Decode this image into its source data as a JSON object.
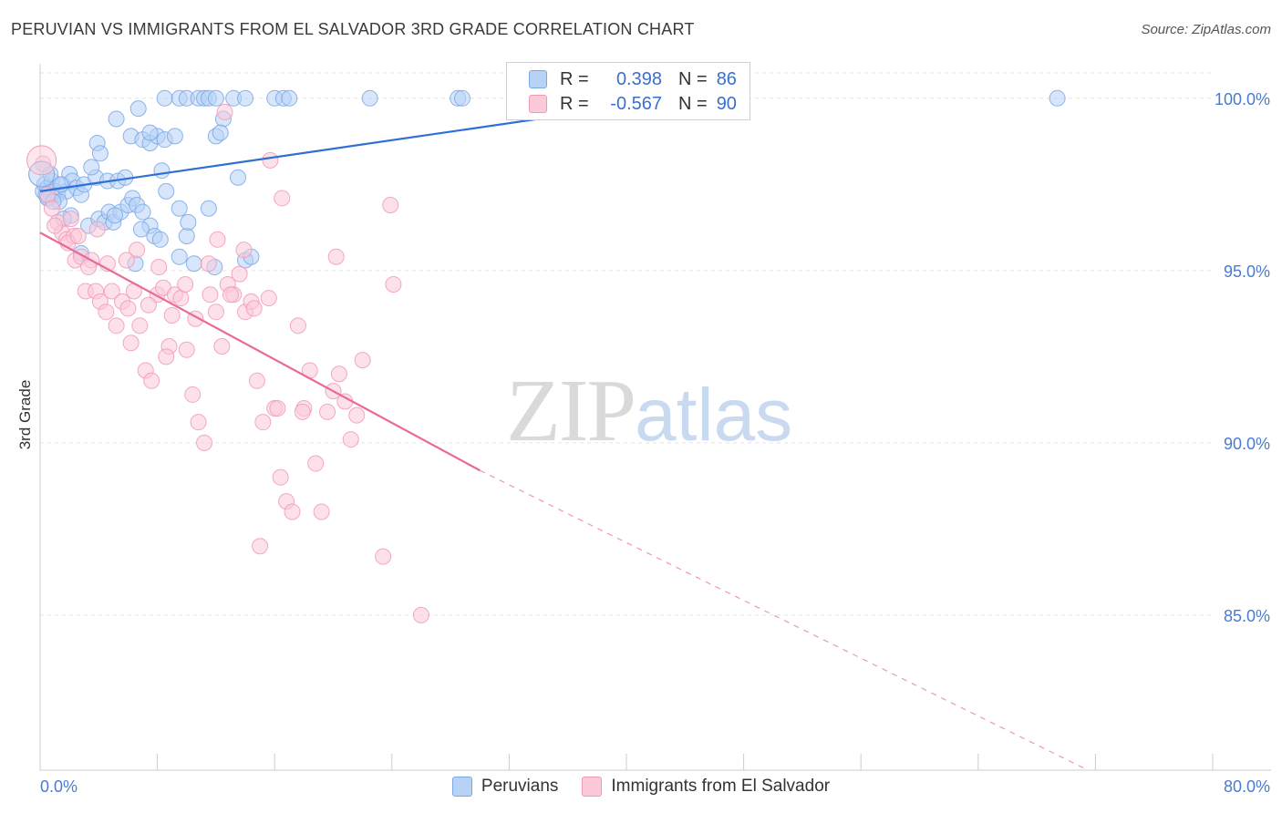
{
  "title": "PERUVIAN VS IMMIGRANTS FROM EL SALVADOR 3RD GRADE CORRELATION CHART",
  "source": "Source: ZipAtlas.com",
  "watermark": {
    "zip": "ZIP",
    "atlas": "atlas"
  },
  "legend": {
    "r_label": "R =",
    "n_label": "N =",
    "series": [
      {
        "name": "Peruvians",
        "r": "0.398",
        "n": "86",
        "color": "#7aa7e6"
      },
      {
        "name": "Immigrants from El Salvador",
        "r": "-0.567",
        "n": "90",
        "color": "#f19ab6"
      }
    ]
  },
  "chart_data": {
    "type": "scatter",
    "title": "PERUVIAN VS IMMIGRANTS FROM EL SALVADOR 3RD GRADE CORRELATION CHART",
    "xlabel": "",
    "ylabel": "3rd Grade",
    "xlim": [
      0,
      80
    ],
    "ylim": [
      80.5,
      101.0
    ],
    "x_tick_labels": {
      "left": "0.0%",
      "right": "80.0%"
    },
    "y_ticks": [
      {
        "value": 100,
        "label": "100.0%"
      },
      {
        "value": 95,
        "label": "95.0%"
      },
      {
        "value": 90,
        "label": "90.0%"
      },
      {
        "value": 85,
        "label": "85.0%"
      }
    ],
    "series": [
      {
        "name": "Peruvians",
        "color": "#7aa7e6",
        "fill": "#b7d2f5",
        "trend": {
          "x": [
            0,
            43.7
          ],
          "y": [
            97.3,
            100.0
          ],
          "dashed_to": null
        },
        "points": [
          [
            0.2,
            97.3
          ],
          [
            0.3,
            97.5
          ],
          [
            0.4,
            97.2
          ],
          [
            0.5,
            97.4
          ],
          [
            0.6,
            97.1
          ],
          [
            0.8,
            97.6
          ],
          [
            1.0,
            97.3
          ],
          [
            1.2,
            97.2
          ],
          [
            1.5,
            97.5
          ],
          [
            1.8,
            97.3
          ],
          [
            2.0,
            97.8
          ],
          [
            2.2,
            97.6
          ],
          [
            2.5,
            97.4
          ],
          [
            2.8,
            97.2
          ],
          [
            3.0,
            97.5
          ],
          [
            0.7,
            97.8
          ],
          [
            1.3,
            97.0
          ],
          [
            2.1,
            96.6
          ],
          [
            3.3,
            96.3
          ],
          [
            3.8,
            97.7
          ],
          [
            4.0,
            96.5
          ],
          [
            4.4,
            96.4
          ],
          [
            4.7,
            96.7
          ],
          [
            5.0,
            96.4
          ],
          [
            5.5,
            96.7
          ],
          [
            6.0,
            96.9
          ],
          [
            6.3,
            97.1
          ],
          [
            6.6,
            96.9
          ],
          [
            7.0,
            96.7
          ],
          [
            7.5,
            96.3
          ],
          [
            3.5,
            98.0
          ],
          [
            3.9,
            98.7
          ],
          [
            4.1,
            98.4
          ],
          [
            4.6,
            97.6
          ],
          [
            5.3,
            97.6
          ],
          [
            5.8,
            97.7
          ],
          [
            6.2,
            98.9
          ],
          [
            7.0,
            98.8
          ],
          [
            7.5,
            98.7
          ],
          [
            8.0,
            98.9
          ],
          [
            8.3,
            97.9
          ],
          [
            8.6,
            97.3
          ],
          [
            9.5,
            96.8
          ],
          [
            10.0,
            96.0
          ],
          [
            10.5,
            95.2
          ],
          [
            11.5,
            96.8
          ],
          [
            12.0,
            98.9
          ],
          [
            12.5,
            99.4
          ],
          [
            13.5,
            97.7
          ],
          [
            14.0,
            95.3
          ],
          [
            5.2,
            99.4
          ],
          [
            6.7,
            99.7
          ],
          [
            7.5,
            99.0
          ],
          [
            8.5,
            98.8
          ],
          [
            9.2,
            98.9
          ],
          [
            12.3,
            99.0
          ],
          [
            8.5,
            100.0
          ],
          [
            9.5,
            100.0
          ],
          [
            10.0,
            100.0
          ],
          [
            10.8,
            100.0
          ],
          [
            11.2,
            100.0
          ],
          [
            11.5,
            100.0
          ],
          [
            12.0,
            100.0
          ],
          [
            13.2,
            100.0
          ],
          [
            14.0,
            100.0
          ],
          [
            16.0,
            100.0
          ],
          [
            16.6,
            100.0
          ],
          [
            17.0,
            100.0
          ],
          [
            22.5,
            100.0
          ],
          [
            28.5,
            100.0
          ],
          [
            28.8,
            100.0
          ],
          [
            69.4,
            100.0
          ],
          [
            1.6,
            96.5
          ],
          [
            2.8,
            95.5
          ],
          [
            6.5,
            95.2
          ],
          [
            7.8,
            96.0
          ],
          [
            8.2,
            95.9
          ],
          [
            9.5,
            95.4
          ],
          [
            11.9,
            95.1
          ],
          [
            14.4,
            95.4
          ],
          [
            6.9,
            96.2
          ],
          [
            5.1,
            96.6
          ],
          [
            10.1,
            96.4
          ],
          [
            0.5,
            97.1
          ],
          [
            0.9,
            97.0
          ],
          [
            1.4,
            97.5
          ]
        ]
      },
      {
        "name": "Immigrants from El Salvador",
        "color": "#f19ab6",
        "fill": "#fbc9d8",
        "trend": {
          "x": [
            0,
            30.0
          ],
          "y": [
            96.1,
            89.2
          ],
          "dashed_to": [
            71.5,
            80.5
          ]
        },
        "points": [
          [
            0.2,
            98.1
          ],
          [
            0.5,
            97.2
          ],
          [
            0.8,
            96.8
          ],
          [
            1.2,
            96.4
          ],
          [
            1.5,
            96.1
          ],
          [
            1.8,
            95.9
          ],
          [
            2.1,
            96.5
          ],
          [
            2.4,
            95.3
          ],
          [
            2.8,
            95.4
          ],
          [
            3.1,
            94.4
          ],
          [
            3.5,
            95.3
          ],
          [
            3.8,
            94.4
          ],
          [
            4.1,
            94.1
          ],
          [
            4.5,
            93.8
          ],
          [
            4.9,
            94.4
          ],
          [
            5.2,
            93.4
          ],
          [
            5.6,
            94.1
          ],
          [
            6.0,
            93.9
          ],
          [
            6.4,
            94.4
          ],
          [
            6.8,
            93.4
          ],
          [
            7.2,
            92.1
          ],
          [
            7.6,
            91.8
          ],
          [
            8.0,
            94.3
          ],
          [
            8.4,
            94.5
          ],
          [
            8.8,
            92.8
          ],
          [
            9.2,
            94.3
          ],
          [
            9.6,
            94.2
          ],
          [
            10.0,
            92.7
          ],
          [
            10.4,
            91.4
          ],
          [
            10.8,
            90.6
          ],
          [
            11.2,
            90.0
          ],
          [
            11.6,
            94.3
          ],
          [
            12.0,
            93.8
          ],
          [
            12.4,
            92.8
          ],
          [
            12.8,
            94.6
          ],
          [
            13.2,
            94.3
          ],
          [
            13.6,
            94.9
          ],
          [
            14.0,
            93.8
          ],
          [
            14.4,
            94.1
          ],
          [
            14.8,
            91.8
          ],
          [
            15.2,
            90.6
          ],
          [
            15.6,
            94.2
          ],
          [
            16.0,
            91.0
          ],
          [
            16.4,
            89.0
          ],
          [
            16.8,
            88.3
          ],
          [
            17.2,
            88.0
          ],
          [
            17.6,
            93.4
          ],
          [
            18.0,
            91.0
          ],
          [
            18.4,
            92.1
          ],
          [
            18.8,
            89.4
          ],
          [
            19.2,
            88.0
          ],
          [
            19.6,
            90.9
          ],
          [
            20.0,
            91.5
          ],
          [
            20.4,
            92.0
          ],
          [
            20.8,
            91.2
          ],
          [
            21.2,
            90.1
          ],
          [
            21.6,
            90.8
          ],
          [
            22.0,
            92.4
          ],
          [
            2.3,
            96.0
          ],
          [
            3.9,
            96.2
          ],
          [
            6.6,
            95.6
          ],
          [
            8.1,
            95.1
          ],
          [
            9.9,
            94.6
          ],
          [
            11.5,
            95.2
          ],
          [
            12.1,
            95.9
          ],
          [
            13.9,
            95.6
          ],
          [
            15.7,
            98.2
          ],
          [
            16.5,
            97.1
          ],
          [
            20.2,
            95.4
          ],
          [
            23.9,
            96.9
          ],
          [
            12.6,
            99.6
          ],
          [
            24.1,
            94.6
          ],
          [
            15.0,
            87.0
          ],
          [
            23.4,
            86.7
          ],
          [
            26.0,
            85.0
          ],
          [
            3.3,
            95.1
          ],
          [
            4.6,
            95.2
          ],
          [
            5.9,
            95.3
          ],
          [
            7.4,
            94.0
          ],
          [
            9.0,
            93.7
          ],
          [
            10.6,
            93.6
          ],
          [
            1.0,
            96.3
          ],
          [
            1.9,
            95.8
          ],
          [
            2.6,
            96.0
          ],
          [
            13.0,
            94.3
          ],
          [
            14.6,
            93.9
          ],
          [
            16.2,
            91.0
          ],
          [
            17.9,
            90.9
          ],
          [
            6.2,
            92.9
          ],
          [
            8.6,
            92.5
          ]
        ]
      }
    ]
  }
}
